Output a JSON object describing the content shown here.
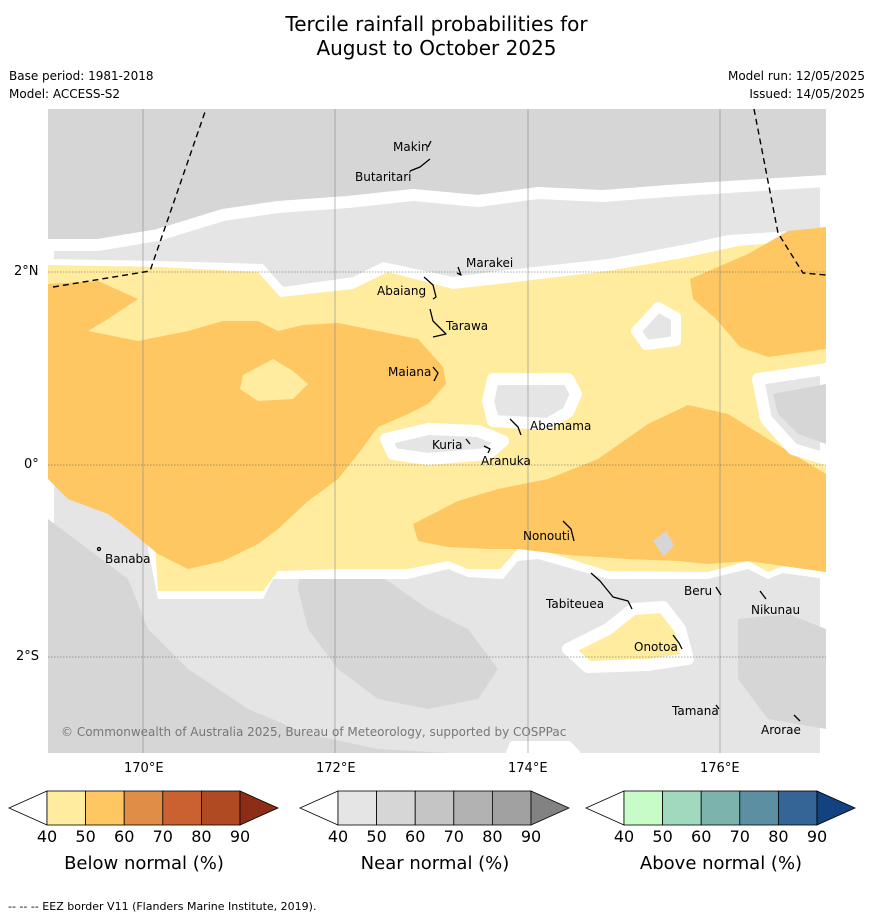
{
  "title_line1": "Tercile rainfall probabilities for",
  "title_line2": "August to October 2025",
  "base_period": "Base period: 1981-2018",
  "model": "Model: ACCESS-S2",
  "model_run": "Model run: 12/05/2025",
  "issued": "Issued: 14/05/2025",
  "copyright": "© Commonwealth of Australia 2025, Bureau of Meteorology, supported by COSPPac",
  "footer": "-- -- -- EEZ border V11 (Flanders Marine Institute, 2019).",
  "axes": {
    "lat_labels": [
      "2°N",
      "0°",
      "2°S"
    ],
    "lon_labels": [
      "170°E",
      "172°E",
      "174°E",
      "176°E"
    ]
  },
  "islands": [
    "Makin",
    "Butaritari",
    "Marakei",
    "Abaiang",
    "Tarawa",
    "Maiana",
    "Abemama",
    "Kuria",
    "Aranuka",
    "Nonouti",
    "Banaba",
    "Tabiteuea",
    "Beru",
    "Nikunau",
    "Onotoa",
    "Tamana",
    "Arorae"
  ],
  "colorbars": [
    {
      "title": "Below normal (%)",
      "ticks": [
        "40",
        "50",
        "60",
        "70",
        "80",
        "90"
      ],
      "colors": [
        "#ffffff",
        "#ffec9f",
        "#fec762",
        "#e08d47",
        "#cb6130",
        "#b04a23",
        "#8d2d17"
      ]
    },
    {
      "title": "Near normal (%)",
      "ticks": [
        "40",
        "50",
        "60",
        "70",
        "80",
        "90"
      ],
      "colors": [
        "#ffffff",
        "#e5e5e5",
        "#d6d6d6",
        "#c5c5c5",
        "#b2b2b2",
        "#a1a1a1",
        "#828282"
      ]
    },
    {
      "title": "Above normal (%)",
      "ticks": [
        "40",
        "50",
        "60",
        "70",
        "80",
        "90"
      ],
      "colors": [
        "#ffffff",
        "#c7fcc9",
        "#a0d9bd",
        "#7cb3ad",
        "#5b8fa1",
        "#356496",
        "#124380"
      ]
    }
  ],
  "colors": {
    "near40": "#e5e5e5",
    "near50": "#d6d6d6",
    "below40": "#ffec9f",
    "below50": "#fec762",
    "white": "#ffffff"
  }
}
